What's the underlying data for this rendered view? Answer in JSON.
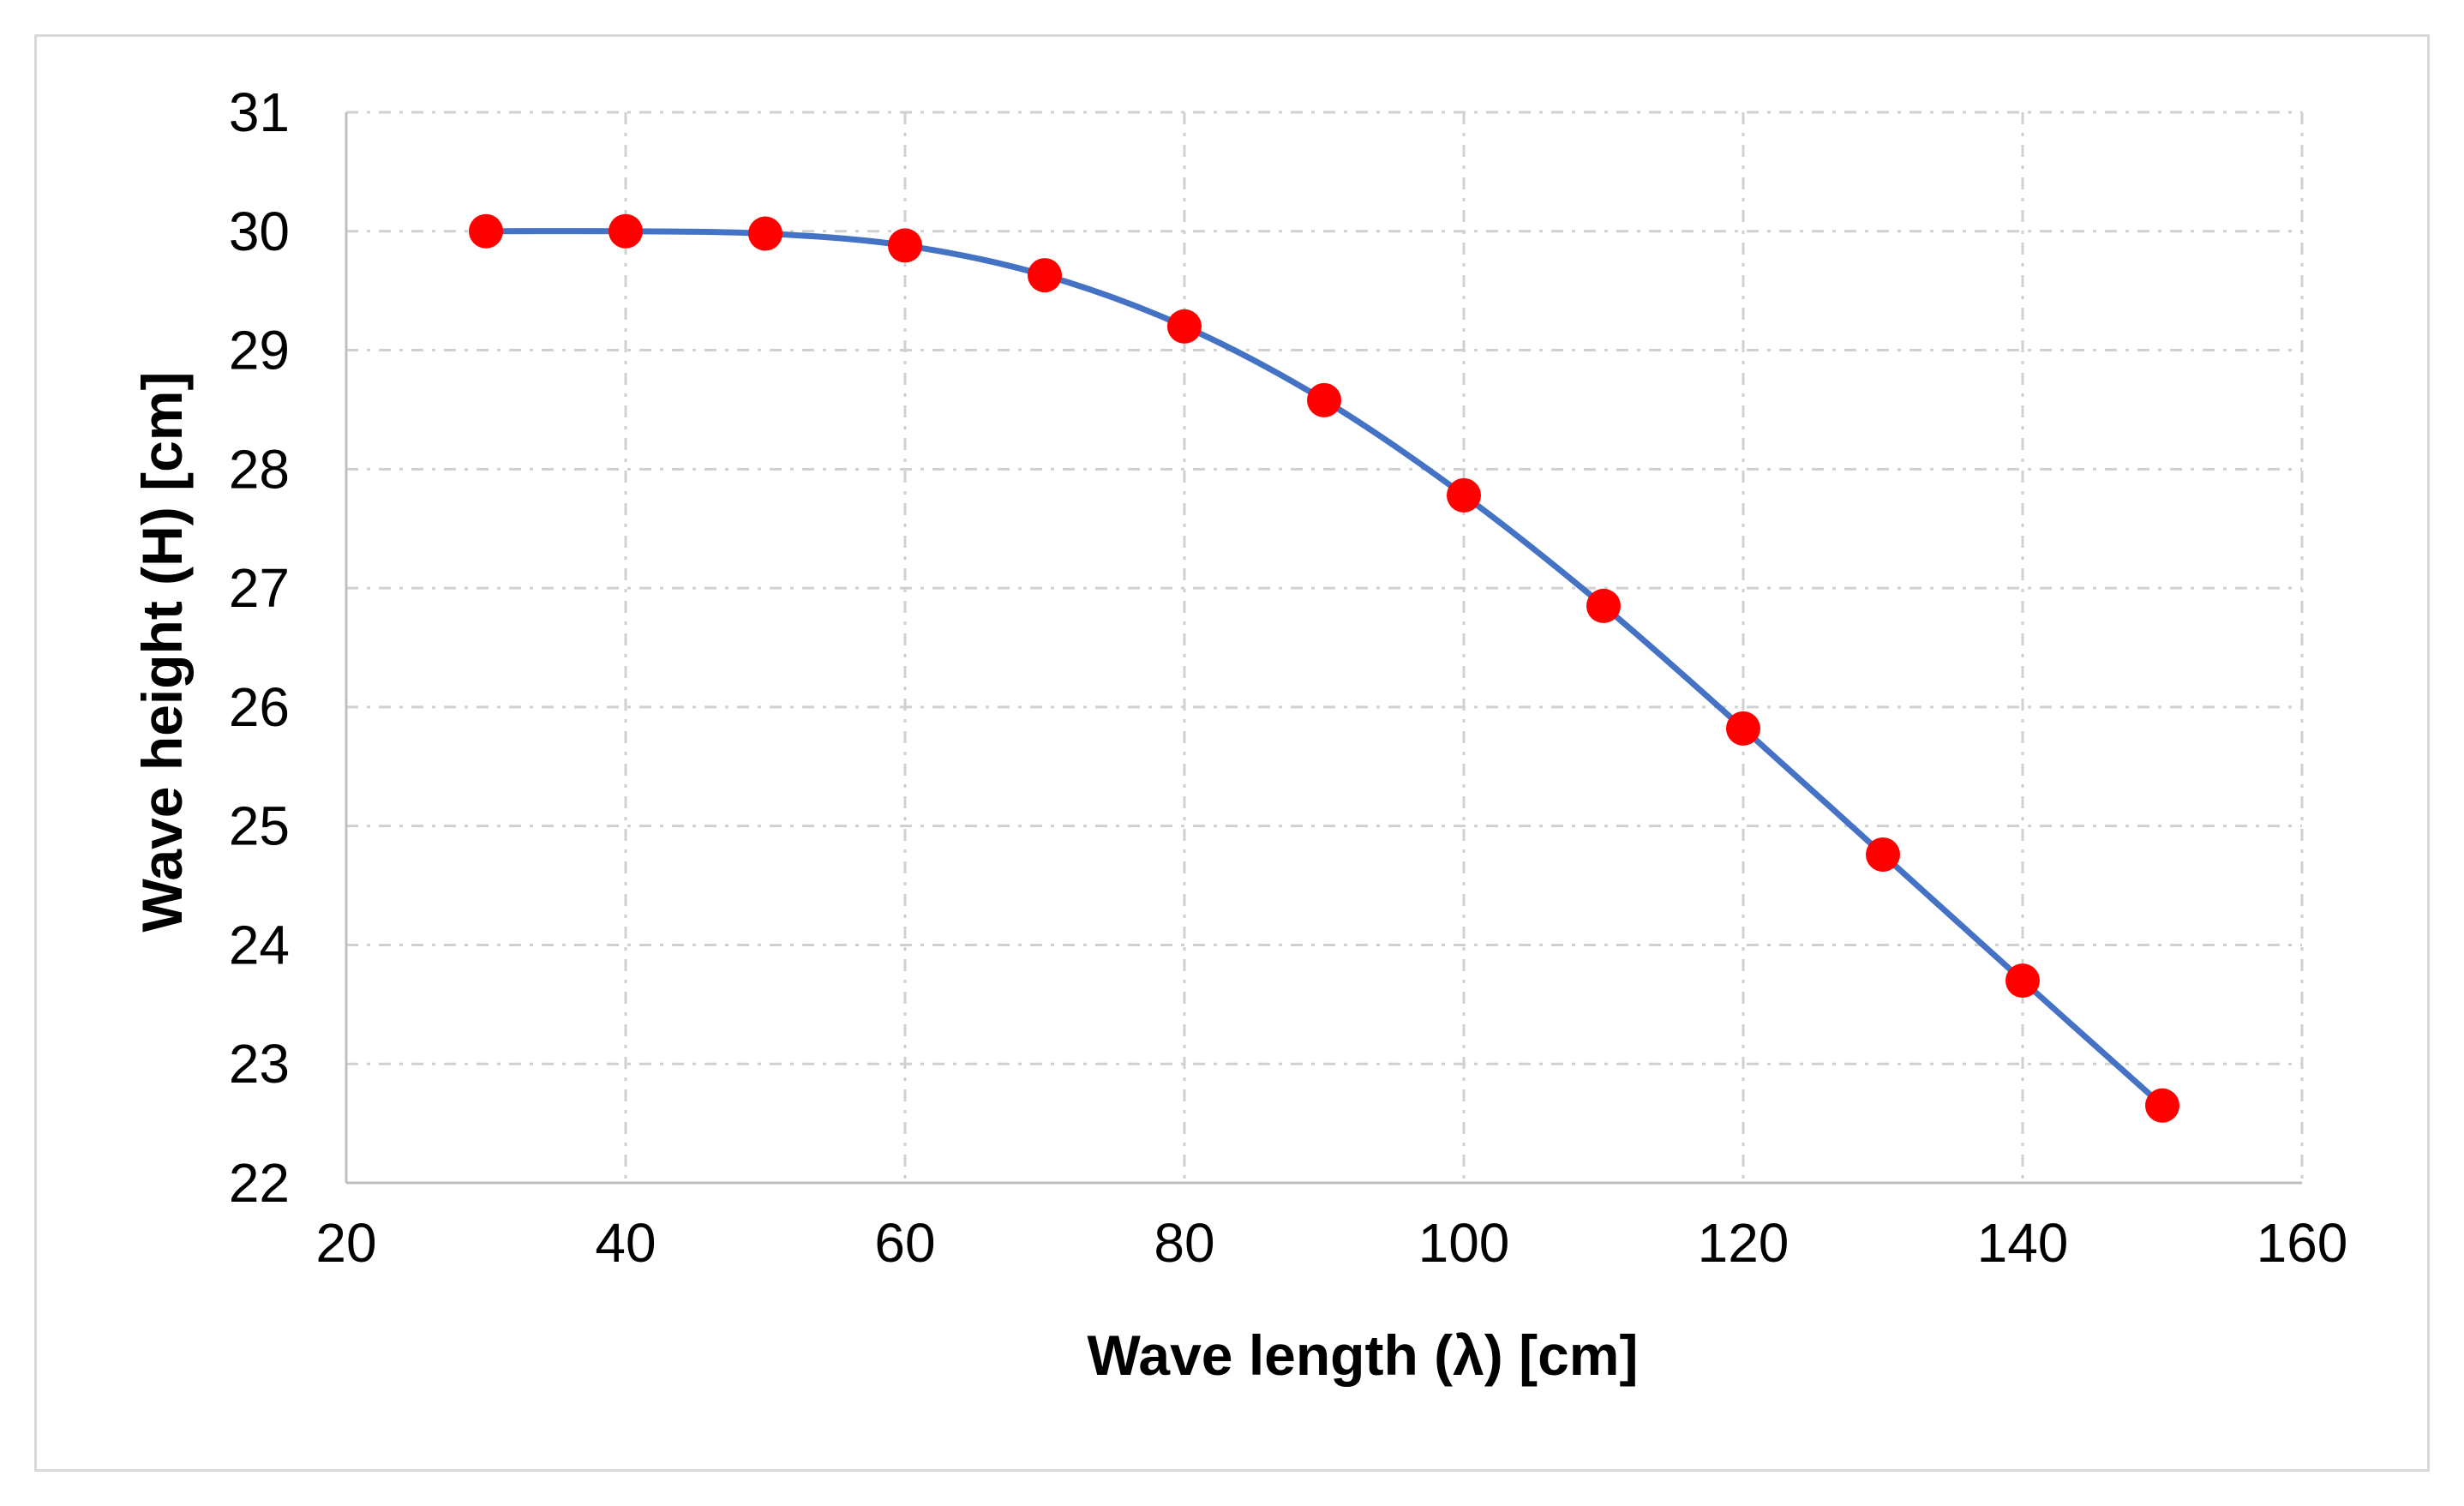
{
  "chart_data": {
    "type": "scatter",
    "title": "",
    "xlabel": "Wave length (λ) [cm]",
    "ylabel": "Wave height (H) [cm]",
    "xlim": [
      20,
      160
    ],
    "ylim": [
      22,
      31
    ],
    "xticks": [
      20,
      40,
      60,
      80,
      100,
      120,
      140,
      160
    ],
    "yticks": [
      22,
      23,
      24,
      25,
      26,
      27,
      28,
      29,
      30,
      31
    ],
    "grid": true,
    "legend": "none",
    "series": [
      {
        "name": "Wave height",
        "marker_color": "#ff0000",
        "line_color": "#4472c4",
        "smooth_line": true,
        "x": [
          30,
          40,
          50,
          60,
          70,
          80,
          90,
          100,
          110,
          120,
          130,
          140,
          150
        ],
        "y": [
          30.0,
          30.0,
          29.98,
          29.88,
          29.63,
          29.2,
          28.58,
          27.78,
          26.85,
          25.82,
          24.76,
          23.7,
          22.65
        ]
      }
    ]
  }
}
